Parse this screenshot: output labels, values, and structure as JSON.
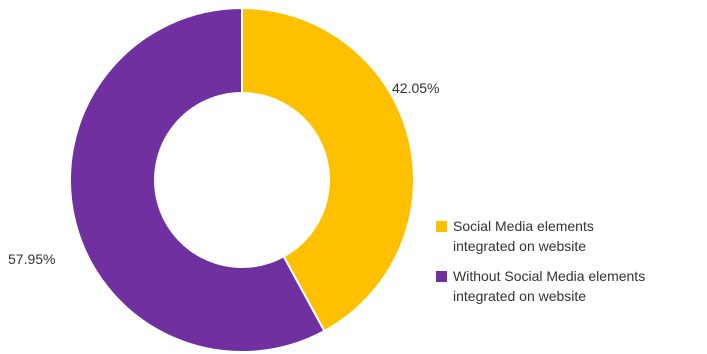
{
  "chart_data": {
    "type": "pie",
    "donut": true,
    "title": "",
    "categories": [
      "Social Media elements integrated on website",
      "Without Social Media elements integrated on website"
    ],
    "values": [
      42.05,
      57.95
    ],
    "data_labels": [
      "42.05%",
      "57.95%"
    ],
    "colors": [
      "#FFC000",
      "#7030A0"
    ],
    "legend": {
      "placement": "right",
      "items": [
        {
          "line1": "Social Media elements",
          "line2": "integrated on website",
          "color": "#FFC000"
        },
        {
          "line1": "Without Social Media elements",
          "line2": "integrated on website",
          "color": "#7030A0"
        }
      ]
    }
  }
}
